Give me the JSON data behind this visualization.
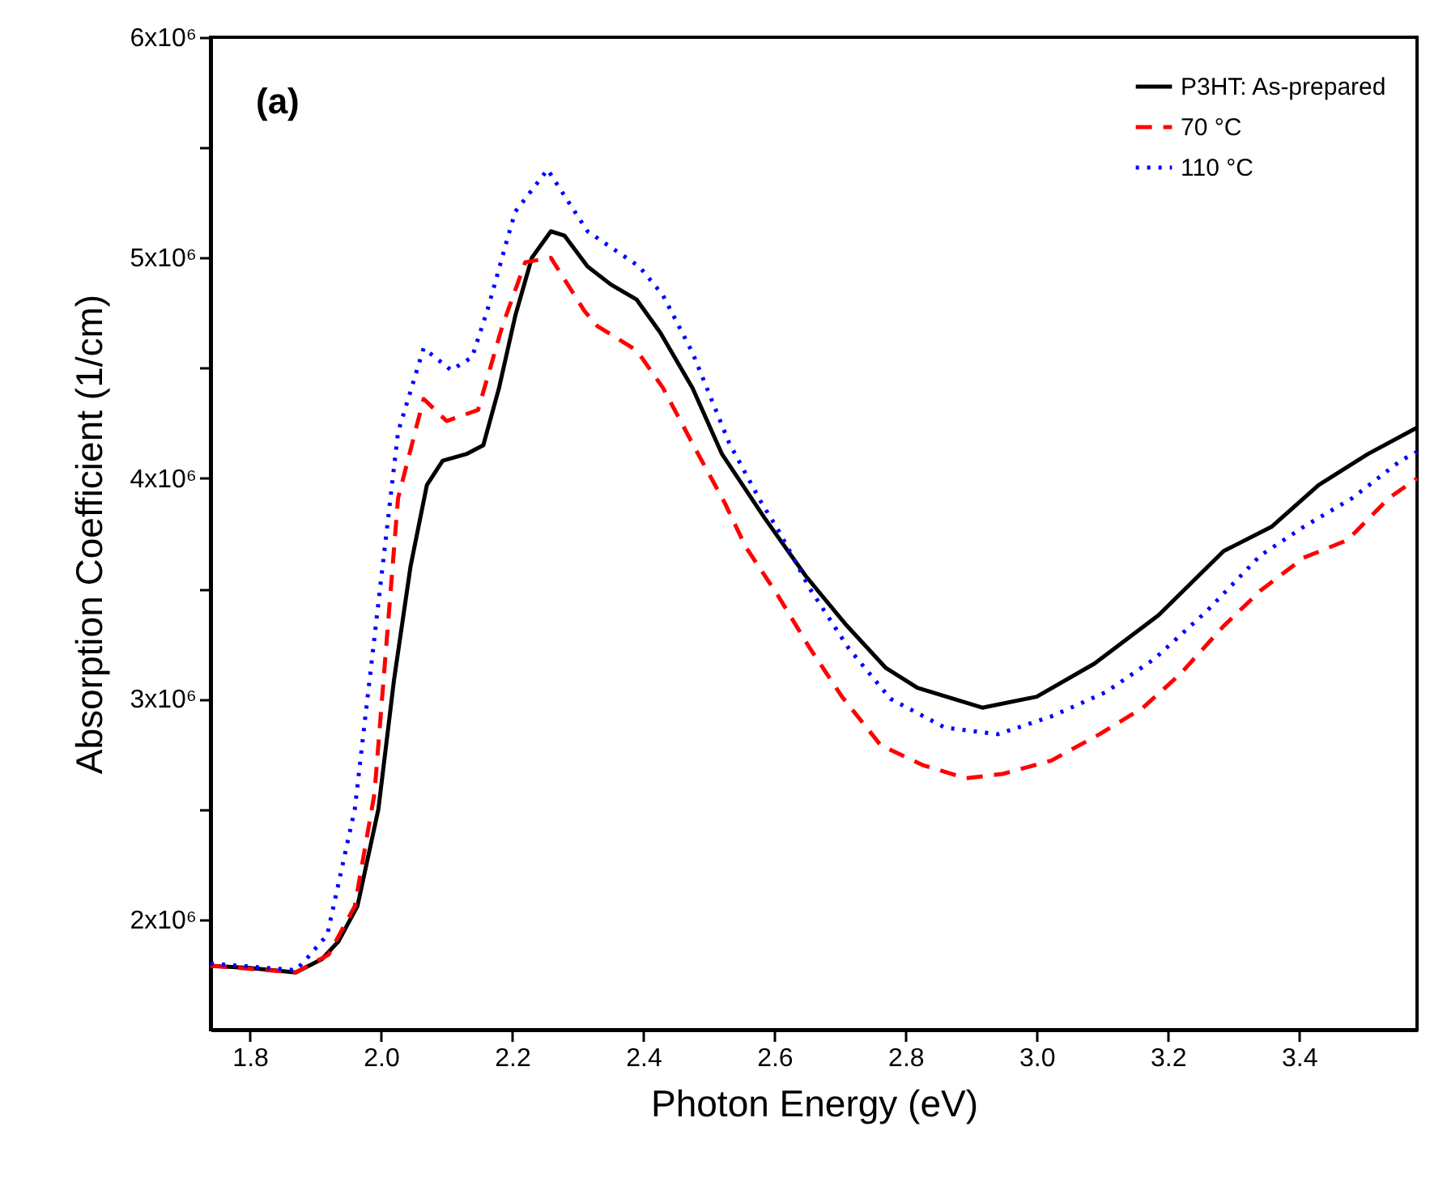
{
  "chart_data": {
    "type": "line",
    "xlabel": "Photon Energy (eV)",
    "ylabel": "Absorption Coefficient (1/cm)",
    "annotations": [
      "(a)"
    ],
    "xlim": [
      1.74,
      3.58
    ],
    "xticks": [
      {
        "value": 1.8,
        "label": "1.8"
      },
      {
        "value": 2.0,
        "label": "2.0"
      },
      {
        "value": 2.2,
        "label": "2.2"
      },
      {
        "value": 2.4,
        "label": "2.4"
      },
      {
        "value": 2.6,
        "label": "2.6"
      },
      {
        "value": 2.8,
        "label": "2.8"
      },
      {
        "value": 3.0,
        "label": "3.0"
      },
      {
        "value": 3.2,
        "label": "3.2"
      },
      {
        "value": 3.4,
        "label": "3.4"
      }
    ],
    "ylim": [
      1500000,
      6000000
    ],
    "yticks": [
      {
        "value": 2000000,
        "label": "2x10⁶"
      },
      {
        "value": 2500000,
        "label": null
      },
      {
        "value": 3000000,
        "label": "3x10⁶"
      },
      {
        "value": 3500000,
        "label": null
      },
      {
        "value": 4000000,
        "label": "4x10⁶"
      },
      {
        "value": 4500000,
        "label": null
      },
      {
        "value": 5000000,
        "label": "5x10⁶"
      },
      {
        "value": 5500000,
        "label": null
      },
      {
        "value": 6000000,
        "label": "6x10⁶"
      }
    ],
    "legend": "top right",
    "grid": false,
    "series": [
      {
        "name": "P3HT: As-prepared",
        "color": "#000000",
        "line_style": "solid",
        "x": [
          1.74,
          1.8,
          1.87,
          1.91,
          1.935,
          1.964,
          1.996,
          2.02,
          2.045,
          2.07,
          2.094,
          2.13,
          2.156,
          2.18,
          2.205,
          2.23,
          2.259,
          2.28,
          2.315,
          2.35,
          2.39,
          2.426,
          2.475,
          2.52,
          2.585,
          2.647,
          2.708,
          2.77,
          2.818,
          2.917,
          3.0,
          3.088,
          3.186,
          3.285,
          3.358,
          3.43,
          3.505,
          3.58
        ],
        "values": [
          1790000,
          1780000,
          1760000,
          1820000,
          1900000,
          2060000,
          2500000,
          3090000,
          3600000,
          3970000,
          4080000,
          4110000,
          4150000,
          4410000,
          4740000,
          5000000,
          5120000,
          5100000,
          4960000,
          4880000,
          4810000,
          4660000,
          4410000,
          4110000,
          3820000,
          3560000,
          3340000,
          3140000,
          3050000,
          2960000,
          3010000,
          3160000,
          3380000,
          3670000,
          3780000,
          3970000,
          4110000,
          4230000
        ]
      },
      {
        "name": "70 °C",
        "color": "#ff0000",
        "line_style": "dashed",
        "x": [
          1.74,
          1.87,
          1.92,
          1.96,
          1.99,
          2.026,
          2.065,
          2.1,
          2.148,
          2.185,
          2.22,
          2.259,
          2.31,
          2.33,
          2.39,
          2.43,
          2.48,
          2.524,
          2.556,
          2.605,
          2.654,
          2.703,
          2.762,
          2.826,
          2.892,
          2.948,
          3.022,
          3.096,
          3.162,
          3.218,
          3.285,
          3.341,
          3.407,
          3.474,
          3.537,
          3.58
        ],
        "values": [
          1790000,
          1760000,
          1840000,
          2060000,
          2570000,
          3910000,
          4360000,
          4260000,
          4310000,
          4690000,
          4980000,
          5000000,
          4760000,
          4690000,
          4580000,
          4410000,
          4130000,
          3890000,
          3690000,
          3470000,
          3230000,
          3010000,
          2790000,
          2700000,
          2640000,
          2660000,
          2720000,
          2840000,
          2960000,
          3110000,
          3330000,
          3490000,
          3640000,
          3720000,
          3910000,
          4000000
        ]
      },
      {
        "name": "110 °C",
        "color": "#0000ff",
        "line_style": "dotted",
        "x": [
          1.74,
          1.87,
          1.886,
          1.918,
          1.96,
          1.99,
          2.026,
          2.065,
          2.107,
          2.139,
          2.163,
          2.193,
          2.205,
          2.254,
          2.315,
          2.394,
          2.43,
          2.475,
          2.531,
          2.58,
          2.605,
          2.654,
          2.713,
          2.777,
          2.86,
          2.941,
          3.022,
          3.105,
          3.179,
          3.26,
          3.341,
          3.407,
          3.481,
          3.555,
          3.58
        ],
        "values": [
          1800000,
          1770000,
          1820000,
          1930000,
          2500000,
          3280000,
          4210000,
          4590000,
          4490000,
          4550000,
          4770000,
          5090000,
          5210000,
          5400000,
          5120000,
          4960000,
          4830000,
          4570000,
          4160000,
          3890000,
          3770000,
          3500000,
          3230000,
          3000000,
          2870000,
          2840000,
          2920000,
          3030000,
          3180000,
          3400000,
          3650000,
          3780000,
          3910000,
          4080000,
          4120000
        ]
      }
    ]
  }
}
